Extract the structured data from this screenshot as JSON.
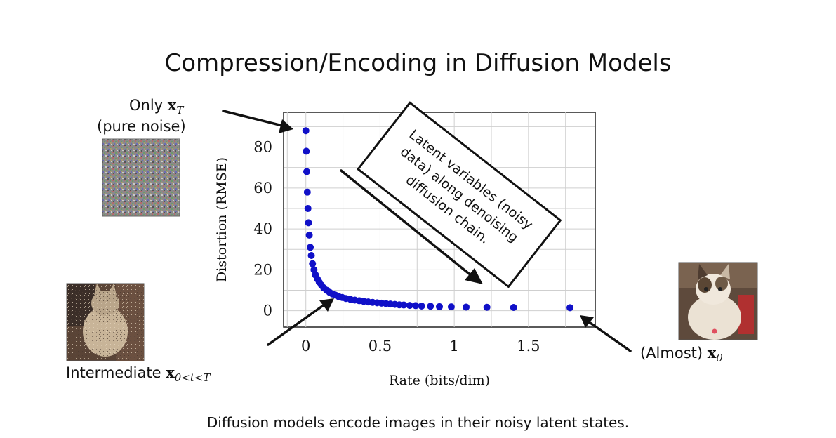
{
  "slide": {
    "title": "Compression/Encoding in Diffusion Models",
    "caption": "Diffusion models encode images in their noisy latent states.",
    "callout_lines": [
      "Latent variables (noisy",
      "data) along denoising",
      "diffusion chain."
    ],
    "labels": {
      "only_prefix": "Only",
      "only_symbol": "x",
      "only_sub": "T",
      "pure_noise": "(pure noise)",
      "intermediate_prefix": "Intermediate",
      "intermediate_symbol": "x",
      "intermediate_sub": "0<t<T",
      "almost_prefix": "(Almost)",
      "almost_symbol": "x",
      "almost_sub": "0"
    },
    "images": {
      "noise": "noise-image",
      "intermediate": "partially-denoised-cat-image",
      "final": "cat-image"
    }
  },
  "chart_data": {
    "type": "scatter",
    "xlabel": "Rate (bits/dim)",
    "ylabel": "Distortion (RMSE)",
    "xlim": [
      -0.15,
      1.95
    ],
    "ylim": [
      -8,
      97
    ],
    "xticks": [
      0,
      0.5,
      1,
      1.5
    ],
    "xtick_labels": [
      "0",
      "0.5",
      "1",
      "1.5"
    ],
    "yticks": [
      0,
      20,
      40,
      60,
      80
    ],
    "ytick_labels": [
      "0",
      "20",
      "40",
      "60",
      "80"
    ],
    "grid": true,
    "marker_color": "#1010c8",
    "series": [
      {
        "x": [
          0,
          0.003,
          0.006,
          0.01,
          0.014,
          0.018,
          0.023,
          0.03,
          0.037,
          0.045,
          0.055,
          0.065,
          0.078,
          0.09,
          0.105,
          0.12,
          0.14,
          0.16,
          0.18,
          0.2,
          0.22,
          0.245,
          0.27,
          0.3,
          0.33,
          0.36,
          0.39,
          0.42,
          0.45,
          0.48,
          0.51,
          0.54,
          0.57,
          0.6,
          0.63,
          0.66,
          0.7,
          0.74,
          0.78,
          0.84,
          0.9,
          0.98,
          1.08,
          1.22,
          1.4,
          1.78
        ],
        "y": [
          88,
          78,
          68,
          58,
          50,
          43,
          37,
          31,
          27,
          23,
          20,
          17.5,
          15.5,
          14,
          12.5,
          11.2,
          10,
          9,
          8.2,
          7.6,
          7,
          6.5,
          6,
          5.6,
          5.2,
          4.9,
          4.6,
          4.3,
          4.1,
          3.9,
          3.7,
          3.5,
          3.3,
          3.1,
          2.9,
          2.8,
          2.6,
          2.5,
          2.3,
          2.2,
          2,
          1.9,
          1.8,
          1.7,
          1.6,
          1.5
        ]
      }
    ]
  }
}
